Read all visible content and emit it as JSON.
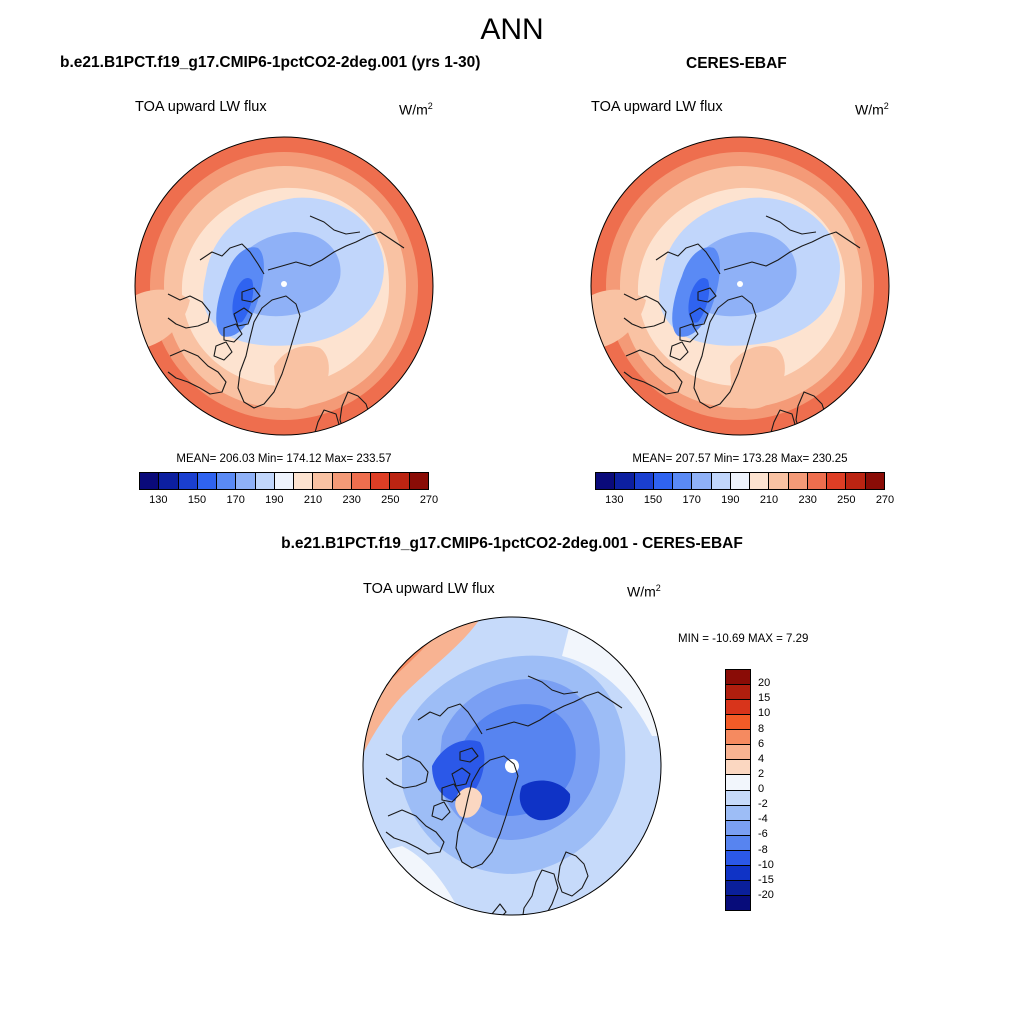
{
  "title": "ANN",
  "panels": {
    "model": {
      "case_title": "b.e21.B1PCT.f19_g17.CMIP6-1pctCO2-2deg.001 (yrs 1-30)",
      "variable": "TOA upward LW flux",
      "units_base": "W/m",
      "units_exp": "2",
      "stats": "MEAN= 206.03  Min= 174.12  Max= 233.57",
      "colorbar_ticks": [
        "130",
        "150",
        "170",
        "190",
        "210",
        "230",
        "250",
        "270"
      ]
    },
    "obs": {
      "case_title": "CERES-EBAF",
      "variable": "TOA upward LW flux",
      "units_base": "W/m",
      "units_exp": "2",
      "stats": "MEAN= 207.57  Min= 173.28  Max= 230.25",
      "colorbar_ticks": [
        "130",
        "150",
        "170",
        "190",
        "210",
        "230",
        "250",
        "270"
      ]
    },
    "diff": {
      "case_title": "b.e21.B1PCT.f19_g17.CMIP6-1pctCO2-2deg.001 - CERES-EBAF",
      "variable": "TOA upward LW flux",
      "units_base": "W/m",
      "units_exp": "2",
      "stats": "MIN = -10.69 MAX =   7.29",
      "colorbar_ticks": [
        "20",
        "15",
        "10",
        "8",
        "6",
        "4",
        "2",
        "0",
        "-2",
        "-4",
        "-6",
        "-8",
        "-10",
        "-15",
        "-20"
      ]
    }
  },
  "colors": {
    "abs_scale": [
      "#0a0a7a",
      "#0c1fa0",
      "#1a3fd0",
      "#2f63f0",
      "#5a8af5",
      "#8fb1f7",
      "#c1d6fb",
      "#eef3fc",
      "#fde3d0",
      "#f9c2a3",
      "#f49a77",
      "#ee6e4e",
      "#de3e25",
      "#bb2412",
      "#8a0c06"
    ],
    "diff_scale": [
      "#8a0c06",
      "#b01e0e",
      "#d8341b",
      "#f35b27",
      "#f58a60",
      "#f8b392",
      "#fbd7c1",
      "#f2f6fc",
      "#c6dafa",
      "#9dbdf6",
      "#7a9ff3",
      "#5784f0",
      "#2b58e8",
      "#0f33c6",
      "#0a1f9a",
      "#070c7a"
    ],
    "coast": "#1a1a1a"
  }
}
